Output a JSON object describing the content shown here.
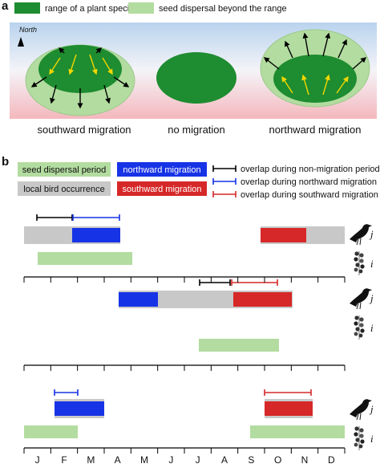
{
  "panel_a": {
    "label": "a",
    "legend": [
      "range of a plant species",
      "seed dispersal beyond the range"
    ],
    "north": "North",
    "captions": [
      "southward migration",
      "no migration",
      "northward migration"
    ]
  },
  "panel_b": {
    "label": "b",
    "legend": {
      "seed": "seed dispersal period",
      "north": "northward migration",
      "bird": "local bird occurrence",
      "south": "southward migration",
      "overlap": [
        "overlap during non-migration period",
        "overlap during northward migration",
        "overlap during southward migration"
      ]
    },
    "rows": [
      {
        "bird": "j",
        "plant": "i"
      },
      {
        "bird": "j",
        "plant": "i"
      },
      {
        "bird": "j",
        "plant": "i"
      }
    ],
    "months": [
      "J",
      "F",
      "M",
      "A",
      "M",
      "J",
      "J",
      "A",
      "S",
      "O",
      "N",
      "D"
    ]
  }
}
